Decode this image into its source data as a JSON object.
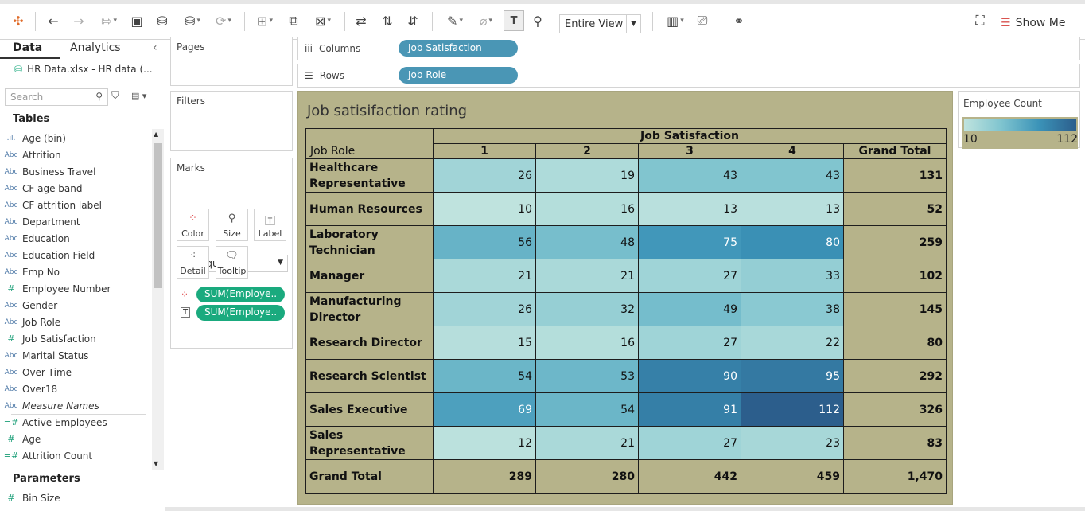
{
  "toolbar": {
    "view_mode": "Entire View",
    "show_me_label": "Show Me"
  },
  "data_pane": {
    "tab_data": "Data",
    "tab_analytics": "Analytics",
    "datasource": "HR Data.xlsx - HR data (...",
    "search_placeholder": "Search",
    "tables_header": "Tables",
    "fields": [
      {
        "icon": ".ıl.",
        "label": "Age (bin)",
        "kind": "dim"
      },
      {
        "icon": "Abc",
        "label": "Attrition",
        "kind": "dim"
      },
      {
        "icon": "Abc",
        "label": "Business Travel",
        "kind": "dim"
      },
      {
        "icon": "Abc",
        "label": "CF age band",
        "kind": "dim"
      },
      {
        "icon": "Abc",
        "label": "CF attrition label",
        "kind": "dim"
      },
      {
        "icon": "Abc",
        "label": "Department",
        "kind": "dim"
      },
      {
        "icon": "Abc",
        "label": "Education",
        "kind": "dim"
      },
      {
        "icon": "Abc",
        "label": "Education Field",
        "kind": "dim"
      },
      {
        "icon": "Abc",
        "label": "Emp No",
        "kind": "dim"
      },
      {
        "icon": "#",
        "label": "Employee Number",
        "kind": "dim"
      },
      {
        "icon": "Abc",
        "label": "Gender",
        "kind": "dim"
      },
      {
        "icon": "Abc",
        "label": "Job Role",
        "kind": "dim"
      },
      {
        "icon": "#",
        "label": "Job Satisfaction",
        "kind": "dim"
      },
      {
        "icon": "Abc",
        "label": "Marital Status",
        "kind": "dim"
      },
      {
        "icon": "Abc",
        "label": "Over Time",
        "kind": "dim"
      },
      {
        "icon": "Abc",
        "label": "Over18",
        "kind": "dim"
      },
      {
        "icon": "Abc",
        "label": "Measure Names",
        "kind": "dim-italic"
      },
      {
        "icon": "=#",
        "label": "Active Employees",
        "kind": "measure"
      },
      {
        "icon": "#",
        "label": "Age",
        "kind": "measure"
      },
      {
        "icon": "=#",
        "label": "Attrition Count",
        "kind": "measure"
      }
    ],
    "parameters_header": "Parameters",
    "parameters": [
      {
        "icon": "#",
        "label": "Bin Size"
      }
    ]
  },
  "cards": {
    "pages": "Pages",
    "filters": "Filters",
    "marks": "Marks",
    "mark_type": "Square",
    "mark_buttons": [
      "Color",
      "Size",
      "Label",
      "Detail",
      "Tooltip"
    ],
    "mark_pills": [
      "SUM(Employe..",
      "SUM(Employe.."
    ]
  },
  "shelves": {
    "columns_label": "Columns",
    "columns_pill": "Job Satisfaction",
    "rows_label": "Rows",
    "rows_pill": "Job Role"
  },
  "legend": {
    "title": "Employee Count",
    "min": "10",
    "max": "112"
  },
  "viz": {
    "title": "Job satisifaction rating",
    "column_field": "Job Satisfaction",
    "row_field": "Job Role",
    "colors": {
      "background": "#b6b38a",
      "low": "#bfe3de",
      "high": "#2c5e8c"
    }
  },
  "chart_data": {
    "type": "heatmap",
    "title": "Job satisifaction rating",
    "xlabel": "Job Satisfaction",
    "ylabel": "Job Role",
    "columns": [
      "1",
      "2",
      "3",
      "4"
    ],
    "total_label": "Grand Total",
    "rows": [
      {
        "label": "Healthcare Representative",
        "values": [
          26,
          19,
          43,
          43
        ],
        "total": "131"
      },
      {
        "label": "Human Resources",
        "values": [
          10,
          16,
          13,
          13
        ],
        "total": "52"
      },
      {
        "label": "Laboratory Technician",
        "values": [
          56,
          48,
          75,
          80
        ],
        "total": "259"
      },
      {
        "label": "Manager",
        "values": [
          21,
          21,
          27,
          33
        ],
        "total": "102"
      },
      {
        "label": "Manufacturing Director",
        "values": [
          26,
          32,
          49,
          38
        ],
        "total": "145"
      },
      {
        "label": "Research Director",
        "values": [
          15,
          16,
          27,
          22
        ],
        "total": "80"
      },
      {
        "label": "Research Scientist",
        "values": [
          54,
          53,
          90,
          95
        ],
        "total": "292"
      },
      {
        "label": "Sales Executive",
        "values": [
          69,
          54,
          91,
          112
        ],
        "total": "326"
      },
      {
        "label": "Sales Representative",
        "values": [
          12,
          21,
          27,
          23
        ],
        "total": "83"
      }
    ],
    "grand_total_row": {
      "label": "Grand Total",
      "values": [
        "289",
        "280",
        "442",
        "459"
      ],
      "total": "1,470"
    },
    "color_range": [
      10,
      112
    ]
  }
}
